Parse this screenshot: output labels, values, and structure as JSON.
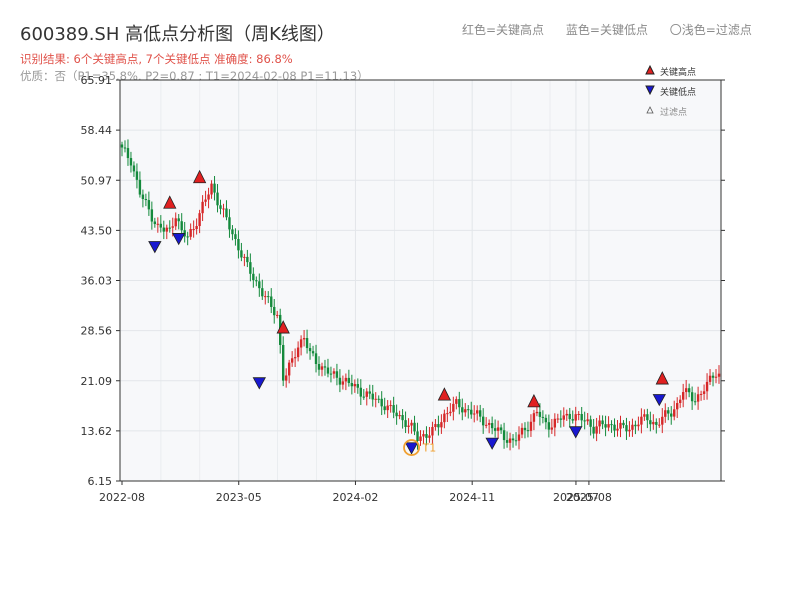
{
  "header": {
    "title": "600389.SH 高低点分析图（周K线图）",
    "result": "识别结果: 6个关键高点, 7个关键低点  准确度: 86.8%",
    "quality": "优质：否（P1=35.8%, P2=0.87 ; T1=2024-02-08 P1=11.13）"
  },
  "top_legend": {
    "red": "红色=关键高点",
    "blue": "蓝色=关键低点",
    "light": "〇浅色=过滤点"
  },
  "legend": {
    "high": "关键高点",
    "low": "关键低点",
    "filtered": "过滤点"
  },
  "colors": {
    "up": "#d62728",
    "down": "#148a3c",
    "high_marker": "#e02020",
    "low_marker": "#1818d0",
    "t1_ring": "#f0a030",
    "plot_bg": "#f7f8fa",
    "grid": "#e3e6ea"
  },
  "chart_data": {
    "type": "candlestick",
    "ylim": [
      6.15,
      65.91
    ],
    "yticks": [
      "65.91",
      "58.44",
      "50.97",
      "43.50",
      "36.03",
      "28.56",
      "21.09",
      "13.62",
      "6.15"
    ],
    "xticks": [
      "2022-08",
      "2023-05",
      "2024-02",
      "2024-11",
      "2025-07",
      "2025-08"
    ],
    "x_range": [
      "2022-08",
      "2025-08"
    ],
    "t1_label": "T1",
    "weekly_close_path": [
      [
        0,
        55.5
      ],
      [
        3,
        54
      ],
      [
        6,
        49
      ],
      [
        9,
        46.5
      ],
      [
        12,
        44
      ],
      [
        14,
        43.5
      ],
      [
        16,
        43.5
      ],
      [
        18,
        46
      ],
      [
        20,
        43
      ],
      [
        22,
        42.5
      ],
      [
        24,
        44
      ],
      [
        26,
        46
      ],
      [
        28,
        48
      ],
      [
        30,
        50.2
      ],
      [
        32,
        48
      ],
      [
        34,
        46
      ],
      [
        36,
        44
      ],
      [
        38,
        42
      ],
      [
        40,
        40
      ],
      [
        42,
        38
      ],
      [
        44,
        36.5
      ],
      [
        46,
        35
      ],
      [
        48,
        33.5
      ],
      [
        50,
        32
      ],
      [
        52,
        31
      ],
      [
        54,
        21.5
      ],
      [
        55,
        22
      ],
      [
        57,
        24
      ],
      [
        59,
        26.5
      ],
      [
        61,
        27.5
      ],
      [
        63,
        25
      ],
      [
        66,
        23.5
      ],
      [
        70,
        22
      ],
      [
        75,
        21
      ],
      [
        80,
        19.5
      ],
      [
        84,
        18.5
      ],
      [
        88,
        17.5
      ],
      [
        92,
        16
      ],
      [
        95,
        15
      ],
      [
        97,
        14
      ],
      [
        99,
        12.5
      ],
      [
        101,
        13
      ],
      [
        104,
        13.5
      ],
      [
        106,
        14.5
      ],
      [
        108,
        16
      ],
      [
        110,
        17
      ],
      [
        112,
        17.5
      ],
      [
        114,
        17
      ],
      [
        117,
        16.5
      ],
      [
        120,
        15.5
      ],
      [
        123,
        14.5
      ],
      [
        126,
        13.5
      ],
      [
        129,
        12.5
      ],
      [
        131,
        12
      ],
      [
        133,
        12.8
      ],
      [
        135,
        14
      ],
      [
        137,
        15
      ],
      [
        139,
        16.5
      ],
      [
        141,
        15
      ],
      [
        144,
        14.5
      ],
      [
        147,
        15.5
      ],
      [
        150,
        16
      ],
      [
        153,
        15.5
      ],
      [
        156,
        15
      ],
      [
        158,
        14
      ],
      [
        161,
        14.5
      ],
      [
        164,
        14.5
      ],
      [
        167,
        14
      ],
      [
        170,
        14
      ],
      [
        173,
        15
      ],
      [
        176,
        15.5
      ],
      [
        179,
        14.5
      ],
      [
        181,
        15.5
      ],
      [
        184,
        16.5
      ],
      [
        186,
        17.5
      ],
      [
        188,
        19.5
      ],
      [
        190,
        19
      ],
      [
        192,
        18.5
      ],
      [
        194,
        19
      ],
      [
        196,
        20.5
      ],
      [
        198,
        22
      ],
      [
        199,
        22.5
      ],
      [
        200,
        22
      ]
    ],
    "key_highs": [
      {
        "week": 16,
        "price": 46.8
      },
      {
        "week": 26,
        "price": 50.6
      },
      {
        "week": 54,
        "price": 28.2
      },
      {
        "week": 108,
        "price": 18.2
      },
      {
        "week": 138,
        "price": 17.2
      },
      {
        "week": 181,
        "price": 20.6
      }
    ],
    "key_lows": [
      {
        "week": 11,
        "price": 41.1
      },
      {
        "week": 19,
        "price": 42.3
      },
      {
        "week": 46,
        "price": 20.8
      },
      {
        "week": 97,
        "price": 11.1
      },
      {
        "week": 124,
        "price": 11.8
      },
      {
        "week": 152,
        "price": 13.5
      },
      {
        "week": 180,
        "price": 18.3
      }
    ],
    "t1_point": {
      "week": 97,
      "price": 11.13
    }
  }
}
